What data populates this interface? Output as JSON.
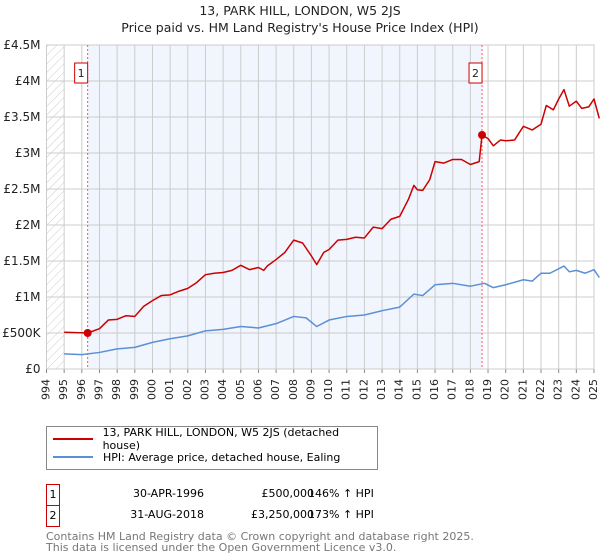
{
  "title": "13, PARK HILL, LONDON, W5 2JS",
  "subtitle": "Price paid vs. HM Land Registry's House Price Index (HPI)",
  "chart_data": {
    "type": "line",
    "title": "13, PARK HILL, LONDON, W5 2JS — Price paid vs. HM Land Registry's House Price Index (HPI)",
    "xlim": [
      1994,
      2025
    ],
    "ylim": [
      0,
      4500000
    ],
    "x_ticks": [
      "1994",
      "1995",
      "1996",
      "1997",
      "1998",
      "1999",
      "2000",
      "2001",
      "2002",
      "2003",
      "2004",
      "2005",
      "2006",
      "2007",
      "2008",
      "2009",
      "2010",
      "2011",
      "2012",
      "2013",
      "2014",
      "2015",
      "2016",
      "2017",
      "2018",
      "2019",
      "2020",
      "2021",
      "2022",
      "2023",
      "2024",
      "2025"
    ],
    "y_ticks": [
      {
        "v": 0,
        "label": "£0"
      },
      {
        "v": 500000,
        "label": "£500K"
      },
      {
        "v": 1000000,
        "label": "£1M"
      },
      {
        "v": 1500000,
        "label": "£1.5M"
      },
      {
        "v": 2000000,
        "label": "£2M"
      },
      {
        "v": 2500000,
        "label": "£2.5M"
      },
      {
        "v": 3000000,
        "label": "£3M"
      },
      {
        "v": 3500000,
        "label": "£3.5M"
      },
      {
        "v": 4000000,
        "label": "£4M"
      },
      {
        "v": 4500000,
        "label": "£4.5M"
      }
    ],
    "grid": true,
    "series": [
      {
        "name": "13, PARK HILL, LONDON, W5 2JS (detached house)",
        "color": "#cc0000",
        "points": [
          [
            1995,
            510000
          ],
          [
            1996.33,
            500000
          ],
          [
            1997,
            560000
          ],
          [
            1997.5,
            680000
          ],
          [
            1998,
            690000
          ],
          [
            1998.5,
            740000
          ],
          [
            1999,
            730000
          ],
          [
            1999.5,
            870000
          ],
          [
            2000,
            950000
          ],
          [
            2000.5,
            1020000
          ],
          [
            2001,
            1030000
          ],
          [
            2001.5,
            1080000
          ],
          [
            2002,
            1120000
          ],
          [
            2002.5,
            1200000
          ],
          [
            2003,
            1310000
          ],
          [
            2003.5,
            1330000
          ],
          [
            2004,
            1340000
          ],
          [
            2004.5,
            1370000
          ],
          [
            2005,
            1440000
          ],
          [
            2005.5,
            1380000
          ],
          [
            2006,
            1410000
          ],
          [
            2006.3,
            1370000
          ],
          [
            2006.5,
            1430000
          ],
          [
            2007,
            1520000
          ],
          [
            2007.5,
            1620000
          ],
          [
            2008,
            1790000
          ],
          [
            2008.5,
            1750000
          ],
          [
            2009,
            1570000
          ],
          [
            2009.3,
            1450000
          ],
          [
            2009.7,
            1620000
          ],
          [
            2010,
            1660000
          ],
          [
            2010.5,
            1790000
          ],
          [
            2011,
            1800000
          ],
          [
            2011.5,
            1830000
          ],
          [
            2012,
            1820000
          ],
          [
            2012.5,
            1970000
          ],
          [
            2013,
            1950000
          ],
          [
            2013.5,
            2080000
          ],
          [
            2014,
            2120000
          ],
          [
            2014.5,
            2360000
          ],
          [
            2014.8,
            2550000
          ],
          [
            2015,
            2490000
          ],
          [
            2015.3,
            2480000
          ],
          [
            2015.7,
            2630000
          ],
          [
            2016,
            2880000
          ],
          [
            2016.5,
            2860000
          ],
          [
            2017,
            2910000
          ],
          [
            2017.5,
            2910000
          ],
          [
            2018,
            2840000
          ],
          [
            2018.5,
            2880000
          ],
          [
            2018.66,
            3250000
          ],
          [
            2019,
            3200000
          ],
          [
            2019.3,
            3100000
          ],
          [
            2019.7,
            3180000
          ],
          [
            2020,
            3170000
          ],
          [
            2020.5,
            3180000
          ],
          [
            2021,
            3370000
          ],
          [
            2021.5,
            3320000
          ],
          [
            2022,
            3400000
          ],
          [
            2022.3,
            3660000
          ],
          [
            2022.7,
            3600000
          ],
          [
            2023,
            3750000
          ],
          [
            2023.3,
            3880000
          ],
          [
            2023.6,
            3650000
          ],
          [
            2024,
            3720000
          ],
          [
            2024.3,
            3620000
          ],
          [
            2024.7,
            3640000
          ],
          [
            2025,
            3750000
          ],
          [
            2025.3,
            3480000
          ]
        ]
      },
      {
        "name": "HPI: Average price, detached house, Ealing",
        "color": "#5b8fd6",
        "points": [
          [
            1995,
            210000
          ],
          [
            1996,
            200000
          ],
          [
            1997,
            230000
          ],
          [
            1998,
            280000
          ],
          [
            1999,
            300000
          ],
          [
            2000,
            370000
          ],
          [
            2001,
            420000
          ],
          [
            2002,
            460000
          ],
          [
            2003,
            530000
          ],
          [
            2004,
            550000
          ],
          [
            2005,
            590000
          ],
          [
            2006,
            570000
          ],
          [
            2007,
            630000
          ],
          [
            2008,
            730000
          ],
          [
            2008.7,
            710000
          ],
          [
            2009.3,
            590000
          ],
          [
            2010,
            680000
          ],
          [
            2011,
            730000
          ],
          [
            2012,
            750000
          ],
          [
            2013,
            810000
          ],
          [
            2014,
            860000
          ],
          [
            2014.8,
            1040000
          ],
          [
            2015.3,
            1020000
          ],
          [
            2016,
            1170000
          ],
          [
            2017,
            1190000
          ],
          [
            2018,
            1150000
          ],
          [
            2018.8,
            1190000
          ],
          [
            2019.3,
            1130000
          ],
          [
            2020,
            1170000
          ],
          [
            2021,
            1240000
          ],
          [
            2021.5,
            1220000
          ],
          [
            2022,
            1330000
          ],
          [
            2022.5,
            1330000
          ],
          [
            2023.3,
            1430000
          ],
          [
            2023.6,
            1350000
          ],
          [
            2024,
            1370000
          ],
          [
            2024.5,
            1330000
          ],
          [
            2025,
            1380000
          ],
          [
            2025.3,
            1270000
          ]
        ]
      }
    ],
    "annotations": [
      {
        "label": "1",
        "x": 1996.33,
        "y": 500000
      },
      {
        "label": "2",
        "x": 2018.66,
        "y": 3250000
      }
    ]
  },
  "legend": {
    "items": [
      "13, PARK HILL, LONDON, W5 2JS (detached house)",
      "HPI: Average price, detached house, Ealing"
    ]
  },
  "transactions": [
    {
      "num": "1",
      "date": "30-APR-1996",
      "price": "£500,000",
      "hpi": "146% ↑ HPI"
    },
    {
      "num": "2",
      "date": "31-AUG-2018",
      "price": "£3,250,000",
      "hpi": "173% ↑ HPI"
    }
  ],
  "footer": {
    "line1": "Contains HM Land Registry data © Crown copyright and database right 2025.",
    "line2": "This data is licensed under the Open Government Licence v3.0."
  }
}
